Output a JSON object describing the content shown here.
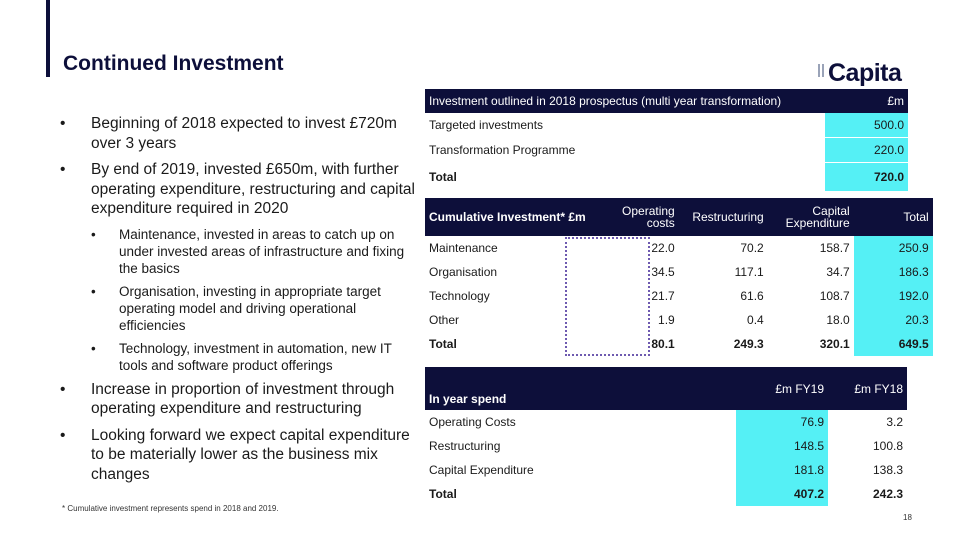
{
  "title": "Continued Investment",
  "logo": "Capita",
  "bullets": [
    {
      "text": "Beginning of 2018 expected to invest £720m over 3 years"
    },
    {
      "text": "By end of 2019, invested £650m, with further operating expenditure, restructuring and capital expenditure required in 2020",
      "sub": [
        "Maintenance, invested in areas to catch up on under invested areas of infrastructure and fixing the basics",
        "Organisation, investing in appropriate target operating model and driving operational efficiencies",
        "Technology, investment in automation, new IT tools and software product offerings"
      ]
    },
    {
      "text": "Increase in proportion of investment through operating expenditure and restructuring"
    },
    {
      "text": "Looking forward we expect capital expenditure to be materially lower as the business mix changes"
    }
  ],
  "table1": {
    "header": [
      "Investment outlined in 2018 prospectus (multi year transformation)",
      "£m"
    ],
    "rows": [
      [
        "Targeted investments",
        "500.0"
      ],
      [
        "Transformation Programme",
        "220.0"
      ],
      [
        "Total",
        "720.0"
      ]
    ]
  },
  "table2": {
    "header": [
      "Cumulative Investment* £m",
      "Operating costs",
      "Restructuring",
      "Capital Expenditure",
      "Total"
    ],
    "rows": [
      [
        "Maintenance",
        "22.0",
        "70.2",
        "158.7",
        "250.9"
      ],
      [
        "Organisation",
        "34.5",
        "117.1",
        "34.7",
        "186.3"
      ],
      [
        "Technology",
        "21.7",
        "61.6",
        "108.7",
        "192.0"
      ],
      [
        "Other",
        "1.9",
        "0.4",
        "18.0",
        "20.3"
      ],
      [
        "Total",
        "80.1",
        "249.3",
        "320.1",
        "649.5"
      ]
    ]
  },
  "table3": {
    "header": [
      "In year spend",
      "£m FY19",
      "£m FY18"
    ],
    "rows": [
      [
        "Operating Costs",
        "76.9",
        "3.2"
      ],
      [
        "Restructuring",
        "148.5",
        "100.8"
      ],
      [
        "Capital Expenditure",
        "181.8",
        "138.3"
      ],
      [
        "Total",
        "407.2",
        "242.3"
      ]
    ]
  },
  "footnote": "* Cumulative investment represents spend in 2018 and 2019.",
  "page_number": "18",
  "colors": {
    "navy": "#0d0f3a",
    "cyan": "#55f0f5",
    "dotted": "#6e5ab0"
  }
}
